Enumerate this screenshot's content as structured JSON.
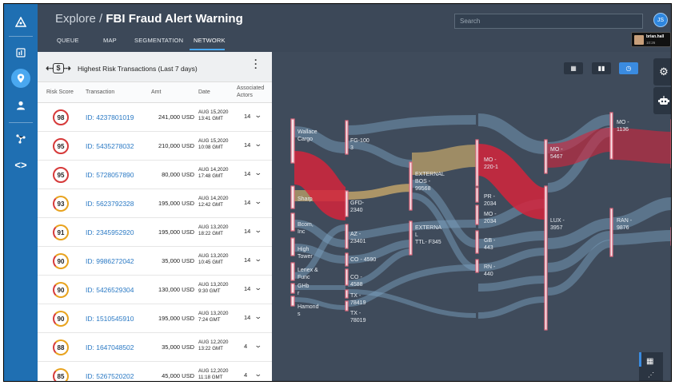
{
  "header": {
    "title_prefix": "Explore / ",
    "title_main": "FBI Fraud Alert Warning",
    "tabs": [
      {
        "label": "QUEUE"
      },
      {
        "label": "MAP"
      },
      {
        "label": "SEGMENTATION"
      },
      {
        "label": "NETWORK"
      }
    ],
    "active_tab": "NETWORK",
    "search_placeholder": "Search",
    "user_initials": "JS",
    "user_name": "brian.hall",
    "user_time": "10:26"
  },
  "nav": {
    "icons": [
      "logo-icon",
      "dashboard-icon",
      "location-pin-icon",
      "user-icon",
      "network-icon",
      "code-icon"
    ],
    "active": "location-pin-icon"
  },
  "panel": {
    "title": "Highest Risk Transactions (Last 7 days)",
    "icon_text": "$",
    "columns": {
      "risk": "Risk Score",
      "transaction": "Transaction",
      "amt": "Amt",
      "date": "Date",
      "actors_1": "Associated",
      "actors_2": "Actors"
    },
    "rows": [
      {
        "score": "98",
        "id": "ID: 4237801019",
        "amt": "241,000 USD",
        "date1": "AUG 15,2020",
        "date2": "13:41 GMT",
        "actors": "14",
        "level": "high"
      },
      {
        "score": "95",
        "id": "ID: 5435278032",
        "amt": "210,000 USD",
        "date1": "AUG 15,2020",
        "date2": "10:08 GMT",
        "actors": "14",
        "level": "high"
      },
      {
        "score": "95",
        "id": "ID: 5728057890",
        "amt": "80,000 USD",
        "date1": "AUG 14,2020",
        "date2": "17:48 GMT",
        "actors": "14",
        "level": "high"
      },
      {
        "score": "93",
        "id": "ID: 5623792328",
        "amt": "195,000 USD",
        "date1": "AUG 14,2020",
        "date2": "12:42 GMT",
        "actors": "14",
        "level": "mid"
      },
      {
        "score": "91",
        "id": "ID: 2345952920",
        "amt": "195,000 USD",
        "date1": "AUG 13,2020",
        "date2": "18:22 GMT",
        "actors": "14",
        "level": "mid"
      },
      {
        "score": "90",
        "id": "ID: 9986272042",
        "amt": "35,000 USD",
        "date1": "AUG 13,2020",
        "date2": "10:45 GMT",
        "actors": "14",
        "level": "mid"
      },
      {
        "score": "90",
        "id": "ID: 5426529304",
        "amt": "130,000 USD",
        "date1": "AUG 13,2020",
        "date2": "9:30 GMT",
        "actors": "14",
        "level": "mid"
      },
      {
        "score": "90",
        "id": "ID: 1510545910",
        "amt": "195,000 USD",
        "date1": "AUG 13,2020",
        "date2": "7:24 GMT",
        "actors": "14",
        "level": "mid"
      },
      {
        "score": "88",
        "id": "ID: 1647048502",
        "amt": "35,000 USD",
        "date1": "AUG 12,2020",
        "date2": "13:22 GMT",
        "actors": "4",
        "level": "mid"
      },
      {
        "score": "85",
        "id": "ID: 5267520202",
        "amt": "45,000 USD",
        "date1": "AUG 12,2020",
        "date2": "11:18 GMT",
        "actors": "4",
        "level": "mid"
      }
    ]
  },
  "network": {
    "colors": {
      "highlight": "#d3243c",
      "flow": "#7fa6c6",
      "gold": "#c8a86a",
      "node": "#f3e6ea"
    },
    "nodes": {
      "wallace": "Wallace\nCargo",
      "sharp": "Sharp",
      "bcom": "Bcom,\nInc",
      "high": "High\nTower",
      "lenex": "Lenex &\nFunc",
      "ghb": "GHb\nr",
      "hamond": "Hamond\ns",
      "fg": "FG-100\n3",
      "gfd": "GFD-\n2340",
      "az": "AZ -\n23401",
      "co4590": "CO - 4590",
      "co4588": "CO -\n4588",
      "tx78419": "TX -\n78419",
      "tx78019": "TX -\n78019",
      "ext1": "EXTERNAL\nBOS -\n99568",
      "ext2": "EXTERNA\nL\nTTL- F345",
      "mo2201": "MO -\n220-1",
      "pr": "PR -\n2034",
      "mo2034": "MO -\n2034",
      "gb": "GB -\n443",
      "rn": "RN -\n440",
      "mo5467": "MO -\n5467",
      "lux": "LUX -\n3957",
      "mo1136": "MO -\n1136",
      "ran": "RAN -\n9876"
    }
  },
  "toolbar": {
    "icons": [
      "grid-view-icon",
      "column-view-icon",
      "clock-icon"
    ],
    "active": "clock-icon",
    "side_icons": [
      "gear-icon",
      "robot-icon"
    ]
  }
}
